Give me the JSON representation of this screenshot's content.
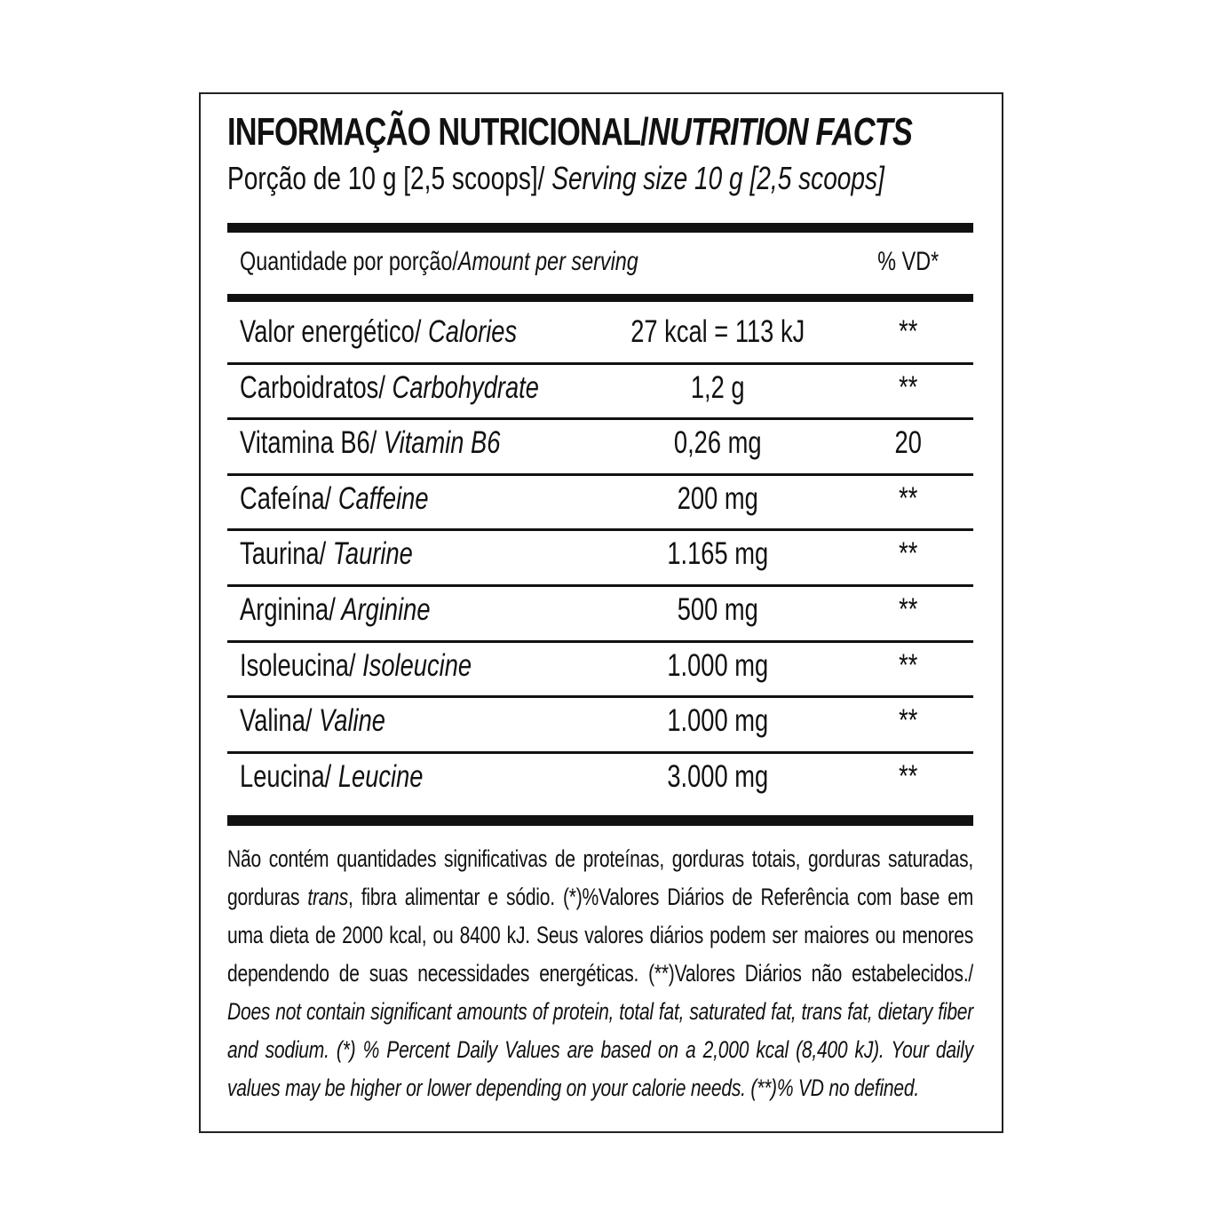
{
  "header": {
    "title": "INFORMAÇÃO NUTRICIONAL/",
    "title_en": "NUTRITION FACTS",
    "serving": "Porção de 10 g [2,5 scoops]/",
    "serving_en": " Serving size 10 g [2,5 scoops]"
  },
  "table": {
    "columns": [
      "Quantidade por porção/",
      "Amount per serving",
      "% VD*"
    ],
    "rows": [
      [
        "Valor energético/",
        " Calories",
        "27 kcal = 113 kJ",
        "**"
      ],
      [
        "Carboidratos/",
        " Carbohydrate",
        "1,2 g",
        "**"
      ],
      [
        "Vitamina B6/",
        " Vitamin B6",
        "0,26 mg",
        "20"
      ],
      [
        "Cafeína/",
        " Caffeine",
        "200 mg",
        "**"
      ],
      [
        "Taurina/",
        " Taurine",
        "1.165 mg",
        "**"
      ],
      [
        "Arginina/",
        " Arginine",
        "500 mg",
        "**"
      ],
      [
        "Isoleucina/",
        " Isoleucine",
        "1.000 mg",
        "**"
      ],
      [
        "Valina/",
        " Valine",
        "1.000 mg",
        "**"
      ],
      [
        "Leucina/",
        " Leucine",
        "3.000 mg",
        "**"
      ]
    ]
  },
  "footnote": {
    "pt": [
      "Não contém quantidades significativas de proteínas, gorduras totais, gorduras saturadas, gorduras ",
      "trans",
      ", fibra alimentar e sódio. (*)%Valores Diários de Referência com base em uma dieta de 2000 kcal, ou 8400 kJ. Seus valores diários podem ser maiores ou menores dependendo de suas necessidades energéticas. (**)Valores Diários não estabelecidos./"
    ],
    "en": "Does not contain significant amounts of protein, total fat, saturated fat, trans fat, dietary fiber and sodium. (*) % Percent Daily Values are based on a 2,000 kcal (8,400 kJ). Your daily values may be higher or lower depending on your calorie needs. (**)% VD no defined."
  }
}
